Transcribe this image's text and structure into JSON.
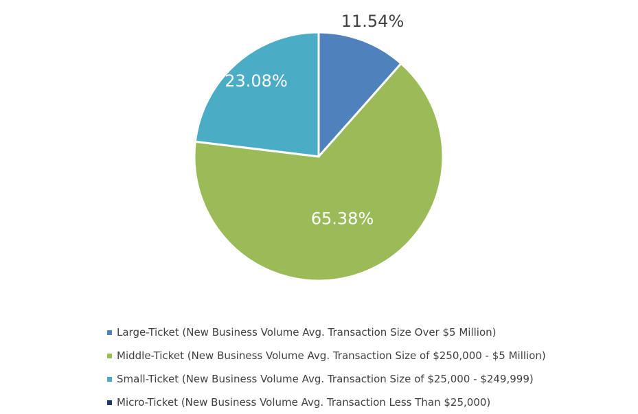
{
  "chart_data": {
    "type": "pie",
    "title": "",
    "legend_position": "bottom",
    "slices": [
      {
        "name": "Large-Ticket (New Business Volume Avg. Transaction Size Over $5 Million)",
        "value": 11.54,
        "label": "11.54%",
        "color": "#4f81bd",
        "label_color": "#404040"
      },
      {
        "name": "Middle-Ticket (New Business Volume Avg. Transaction Size of $250,000 - $5 Million)",
        "value": 65.38,
        "label": "65.38%",
        "color": "#9bbb59",
        "label_color": "#ffffff"
      },
      {
        "name": "Small-Ticket (New Business Volume Avg. Transaction Size of $25,000 - $249,999)",
        "value": 23.08,
        "label": "23.08%",
        "color": "#4bacc6",
        "label_color": "#ffffff"
      },
      {
        "name": "Micro-Ticket (New Business Volume Avg. Transaction Less Than $25,000)",
        "value": 0,
        "label": "",
        "color": "#1f3864",
        "label_color": "#404040"
      }
    ]
  }
}
